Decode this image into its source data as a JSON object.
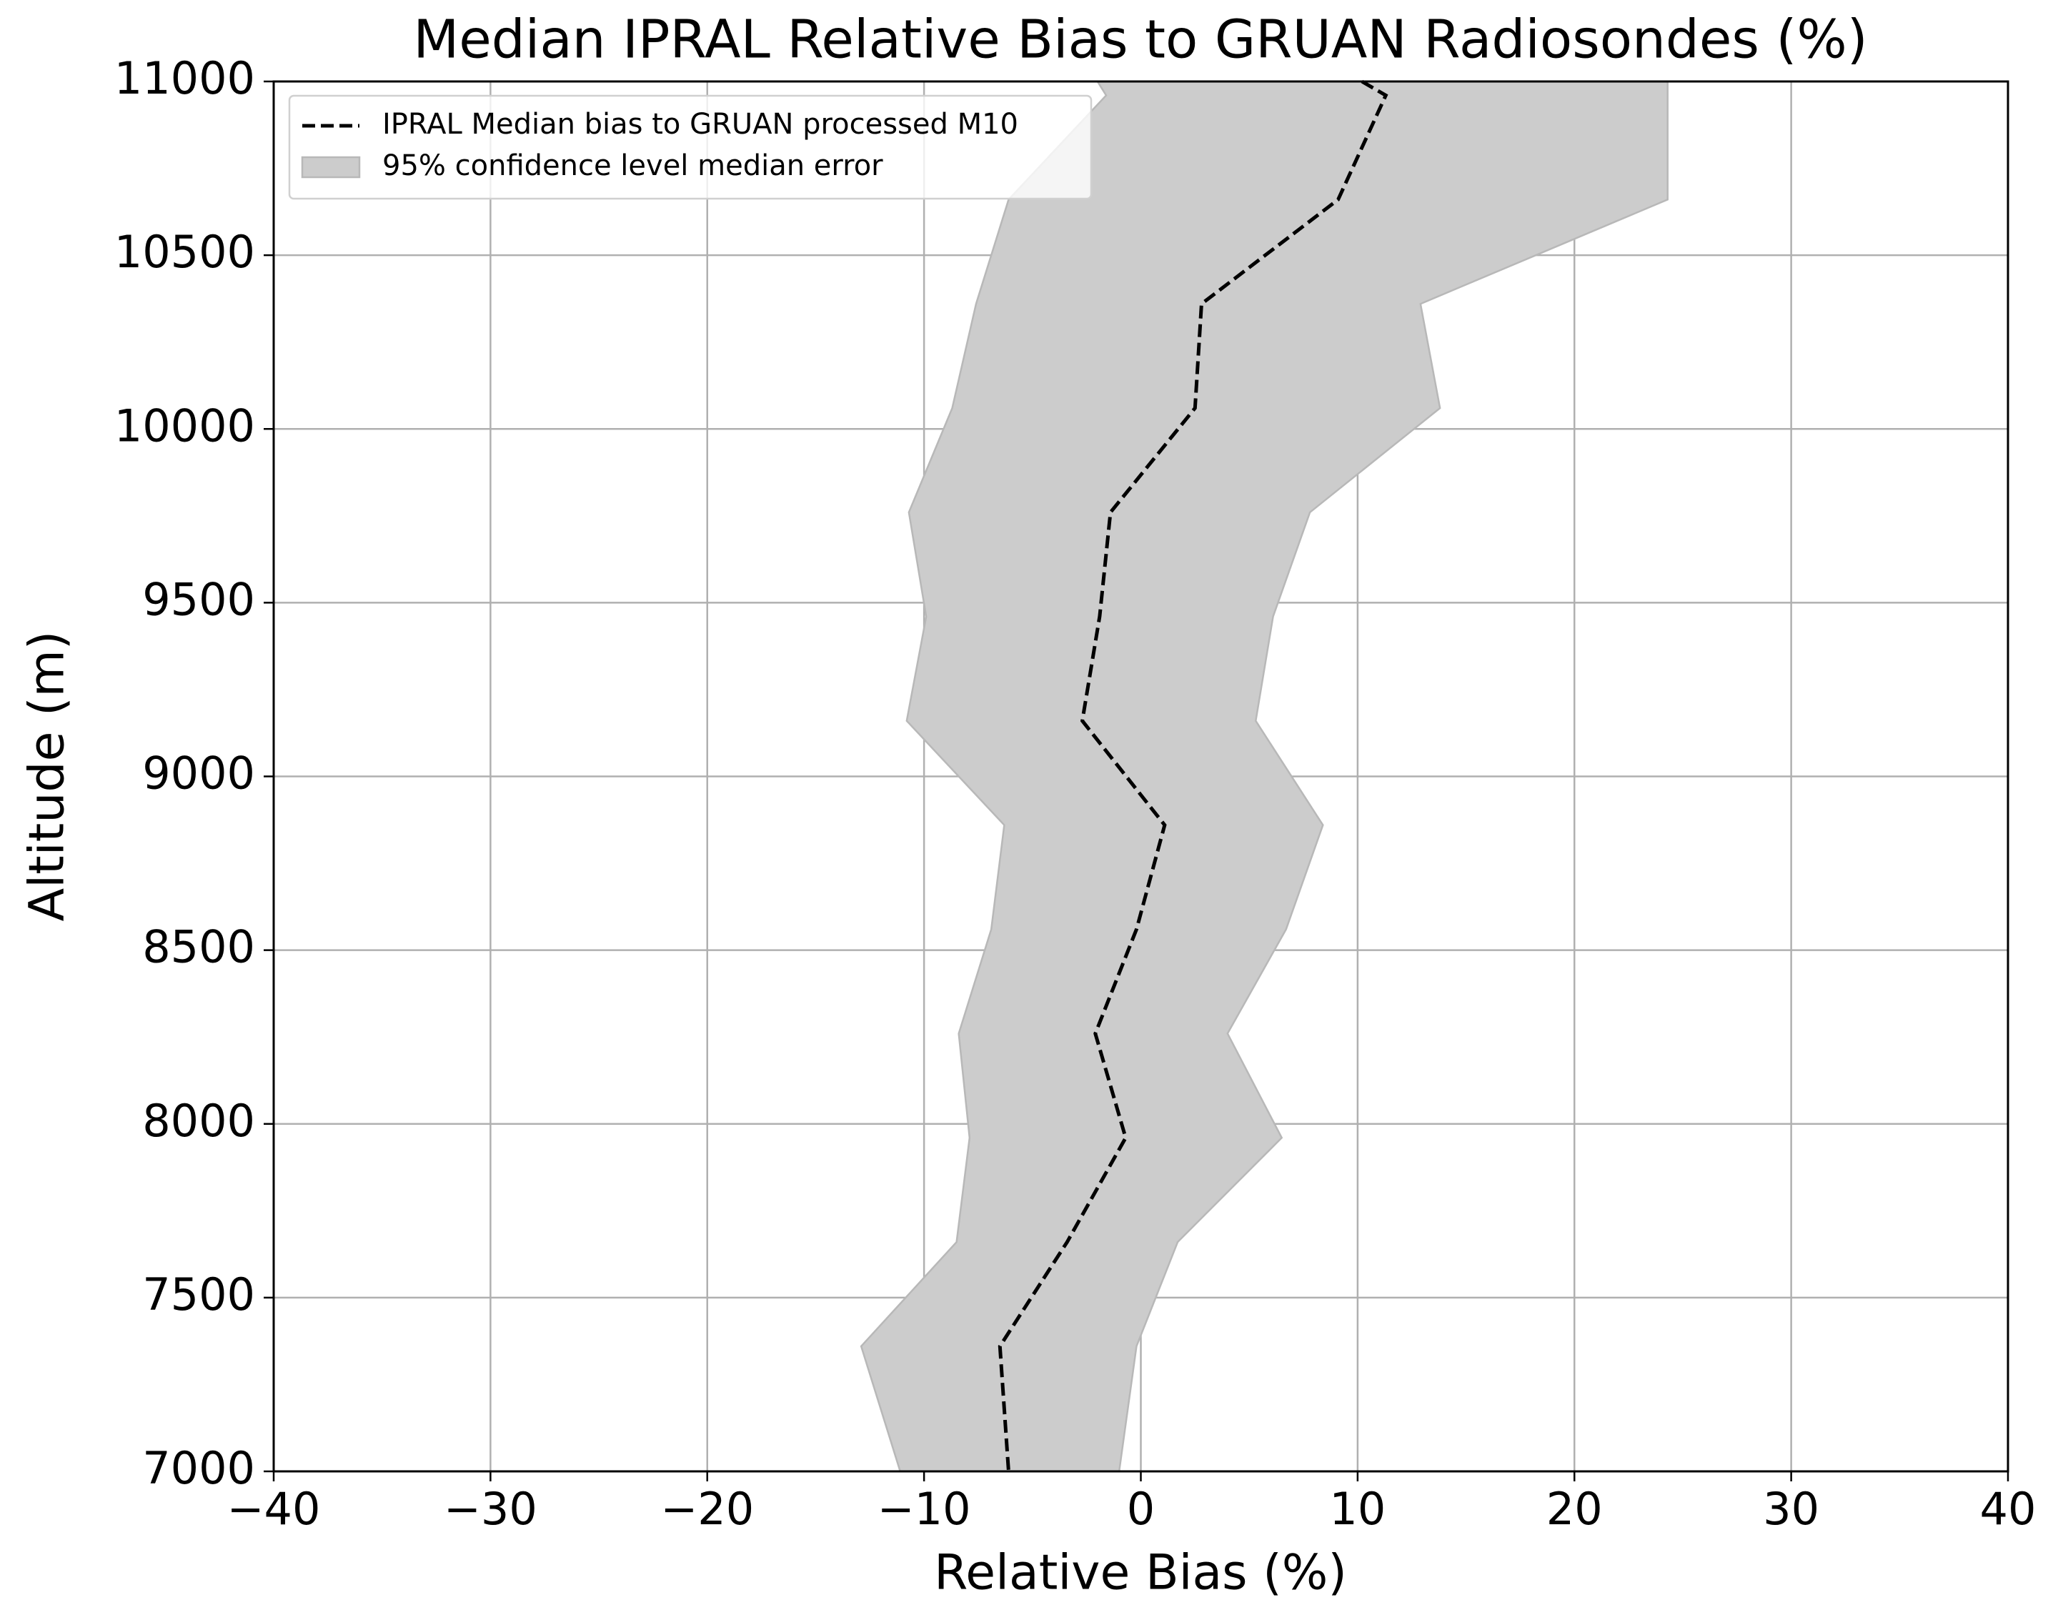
{
  "chart_data": {
    "type": "line",
    "title": "Median IPRAL Relative Bias to GRUAN Radiosondes (%)",
    "x_label": "Relative Bias (%)",
    "y_label": "Altitude (m)",
    "y": [
      11000,
      10960,
      10660,
      10360,
      10060,
      9760,
      9460,
      9160,
      8860,
      8560,
      8260,
      7960,
      7660,
      7360,
      7000
    ],
    "series": [
      {
        "name": "IPRAL Median bias to GRUAN processed M10",
        "color": "#000000",
        "values": [
          10.2,
          11.3,
          9.1,
          2.8,
          2.5,
          -1.4,
          -1.9,
          -2.7,
          1.1,
          -0.2,
          -2.1,
          -0.7,
          -3.4,
          -6.5,
          -6.1
        ]
      }
    ],
    "band": {
      "name": "95% confidence level median error",
      "color": "#cccccc",
      "lower": [
        -2.0,
        -1.6,
        -6.1,
        -7.6,
        -8.7,
        -10.7,
        -9.9,
        -10.8,
        -6.3,
        -6.9,
        -8.4,
        -7.9,
        -8.5,
        -12.9,
        -11.1
      ],
      "upper": [
        24.3,
        24.3,
        24.3,
        12.9,
        13.8,
        7.8,
        6.1,
        5.3,
        8.4,
        6.7,
        4.0,
        6.5,
        1.7,
        -0.2,
        -1.0
      ]
    },
    "xlim": [
      -40,
      40
    ],
    "xticks": [
      {
        "value": -40,
        "label": "−40"
      },
      {
        "value": -30,
        "label": "−30"
      },
      {
        "value": -20,
        "label": "−20"
      },
      {
        "value": -10,
        "label": "−10"
      },
      0,
      10,
      20,
      30,
      40
    ],
    "ylim": [
      7000,
      11000
    ],
    "yticks": [
      7000,
      7500,
      8000,
      8500,
      9000,
      9500,
      10000,
      10500,
      11000
    ],
    "grid": true,
    "legend": "upper left"
  }
}
